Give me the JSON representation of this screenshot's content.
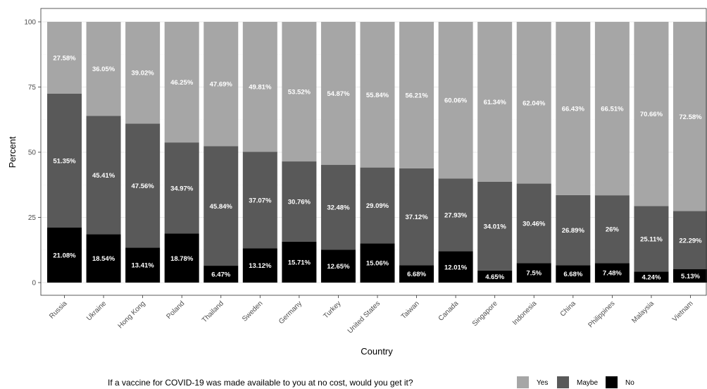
{
  "chart_data": {
    "type": "bar",
    "stacked": true,
    "xlabel": "Country",
    "ylabel": "Percent",
    "ylim": [
      0,
      100
    ],
    "yticks": [
      0,
      25,
      50,
      75,
      100
    ],
    "grid": true,
    "legend_position": "bottom",
    "legend_title": "If a vaccine for COVID-19 was made available to you at no cost, would you get it?",
    "categories": [
      "Russia",
      "Ukraine",
      "Hong Kong",
      "Poland",
      "Thailand",
      "Sweden",
      "Germany",
      "Turkey",
      "United States",
      "Taiwan",
      "Canada",
      "Singapore",
      "Indonesia",
      "China",
      "Philippines",
      "Malaysia",
      "Vietnam"
    ],
    "series": [
      {
        "name": "Yes",
        "color": "#a6a6a6",
        "values": [
          27.58,
          36.05,
          39.02,
          46.25,
          47.69,
          49.81,
          53.52,
          54.87,
          55.84,
          56.21,
          60.06,
          61.34,
          62.04,
          66.43,
          66.51,
          70.66,
          72.58
        ],
        "labels": [
          "27.58%",
          "36.05%",
          "39.02%",
          "46.25%",
          "47.69%",
          "49.81%",
          "53.52%",
          "54.87%",
          "55.84%",
          "56.21%",
          "60.06%",
          "61.34%",
          "62.04%",
          "66.43%",
          "66.51%",
          "70.66%",
          "72.58%"
        ]
      },
      {
        "name": "Maybe",
        "color": "#595959",
        "values": [
          51.35,
          45.41,
          47.56,
          34.97,
          45.84,
          37.07,
          30.76,
          32.48,
          29.09,
          37.12,
          27.93,
          34.01,
          30.46,
          26.89,
          26.0,
          25.11,
          22.29
        ],
        "labels": [
          "51.35%",
          "45.41%",
          "47.56%",
          "34.97%",
          "45.84%",
          "37.07%",
          "30.76%",
          "32.48%",
          "29.09%",
          "37.12%",
          "27.93%",
          "34.01%",
          "30.46%",
          "26.89%",
          "26%",
          "25.11%",
          "22.29%"
        ]
      },
      {
        "name": "No",
        "color": "#000000",
        "values": [
          21.08,
          18.54,
          13.41,
          18.78,
          6.47,
          13.12,
          15.71,
          12.65,
          15.06,
          6.68,
          12.01,
          4.65,
          7.5,
          6.68,
          7.48,
          4.24,
          5.13
        ],
        "labels": [
          "21.08%",
          "18.54%",
          "13.41%",
          "18.78%",
          "6.47%",
          "13.12%",
          "15.71%",
          "12.65%",
          "15.06%",
          "6.68%",
          "12.01%",
          "4.65%",
          "7.5%",
          "6.68%",
          "7.48%",
          "4.24%",
          "5.13%"
        ]
      }
    ]
  }
}
